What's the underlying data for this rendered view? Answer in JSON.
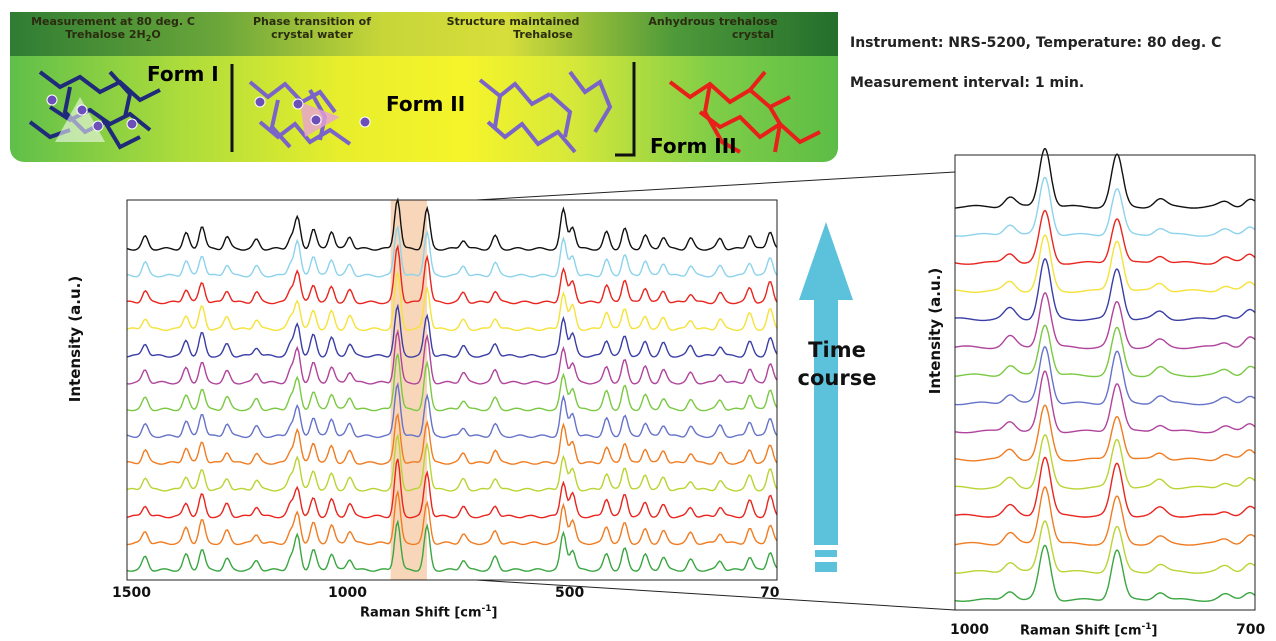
{
  "banner": {
    "col1_line1": "Measurement at 80 deg. C",
    "col1_line2_prefix": "Trehalose 2H",
    "col1_line2_sub": "2",
    "col1_line2_suffix": "O",
    "col2_line1": "Phase transition of",
    "col2_line2": "crystal water",
    "col3_line1": "Structure maintained",
    "col3_line2": "Trehalose",
    "col4_line1": "Anhydrous trehalose",
    "col4_line2": "crystal",
    "form1": "Form I",
    "form2": "Form II",
    "form3": "Form III",
    "colors": {
      "form1": "#e9f5e0",
      "form2": "#e8312a",
      "form3": "#ffffff",
      "molecule_dark": "#1f2a7a",
      "molecule_purple": "#7a64c8",
      "molecule_red": "#e8201a"
    }
  },
  "info": {
    "instrument": "Instrument: NRS-5200, Temperature: 80 deg. C",
    "interval": "Measurement interval: 1 min."
  },
  "time_course": {
    "line1": "Time",
    "line2": "course",
    "arrow_color": "#5cc2dc"
  },
  "chart_data": [
    {
      "type": "line",
      "xlabel": "Raman Shift [cm",
      "xlabel_sup": "-1",
      "xlabel_end": "]",
      "ylabel": "Intensity (a.u.)",
      "x_tick_labels": [
        "1500",
        "1000",
        "500",
        "70"
      ],
      "xlim": [
        1500,
        70
      ],
      "highlight_range": [
        920,
        840
      ],
      "highlight_color": "#f5c49b",
      "series_colors": [
        "#111111",
        "#8dd3ec",
        "#e8251e",
        "#f5e23a",
        "#3a3ea6",
        "#b0449c",
        "#7ac943",
        "#6673c9",
        "#f07c22",
        "#b9d433",
        "#e8251e",
        "#f07c22",
        "#3aa641"
      ],
      "peaks": [
        {
          "x": 1460,
          "h": 0.5
        },
        {
          "x": 1370,
          "h": 0.6
        },
        {
          "x": 1335,
          "h": 0.9
        },
        {
          "x": 1280,
          "h": 0.5
        },
        {
          "x": 1215,
          "h": 0.4
        },
        {
          "x": 1140,
          "h": 0.5
        },
        {
          "x": 1125,
          "h": 1.3
        },
        {
          "x": 1090,
          "h": 0.8
        },
        {
          "x": 1050,
          "h": 0.7
        },
        {
          "x": 1010,
          "h": 0.5
        },
        {
          "x": 905,
          "h": 2.2
        },
        {
          "x": 840,
          "h": 1.8
        },
        {
          "x": 760,
          "h": 0.4
        },
        {
          "x": 690,
          "h": 0.5
        },
        {
          "x": 540,
          "h": 1.5
        },
        {
          "x": 520,
          "h": 0.9
        },
        {
          "x": 445,
          "h": 0.7
        },
        {
          "x": 405,
          "h": 0.9
        },
        {
          "x": 360,
          "h": 0.6
        },
        {
          "x": 320,
          "h": 0.5
        },
        {
          "x": 260,
          "h": 0.4
        },
        {
          "x": 195,
          "h": 0.4
        },
        {
          "x": 130,
          "h": 0.6
        },
        {
          "x": 85,
          "h": 0.8
        }
      ]
    },
    {
      "type": "line",
      "xlabel": "Raman Shift [cm",
      "xlabel_sup": "-1",
      "xlabel_end": "]",
      "ylabel": "Intensity (a.u.)",
      "x_tick_labels": [
        "1000",
        "700"
      ],
      "xlim": [
        1000,
        700
      ],
      "series_colors": [
        "#111111",
        "#8dd3ec",
        "#e8251e",
        "#f5e23a",
        "#3a3ea6",
        "#b0449c",
        "#7ac943",
        "#6673c9",
        "#b0449c",
        "#f07c22",
        "#b9d433",
        "#e8251e",
        "#f07c22",
        "#b9d433",
        "#3aa641"
      ],
      "peaks": [
        {
          "x": 945,
          "h": 0.4
        },
        {
          "x": 910,
          "h": 2.2
        },
        {
          "x": 838,
          "h": 1.9
        },
        {
          "x": 795,
          "h": 0.3
        },
        {
          "x": 730,
          "h": 0.2
        },
        {
          "x": 705,
          "h": 0.35
        }
      ]
    }
  ]
}
